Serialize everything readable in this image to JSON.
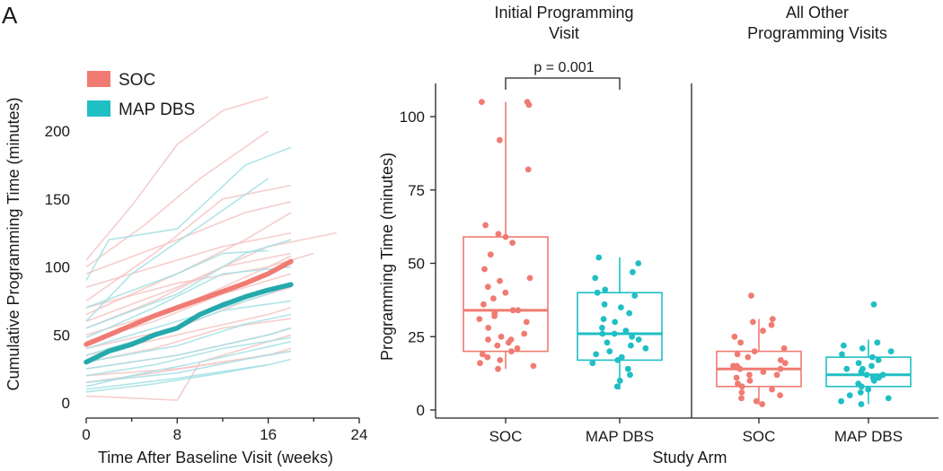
{
  "panel_label": "A",
  "colors": {
    "soc": "#f07b72",
    "map": "#1fbfc4",
    "soc_light": "#f6c4c4",
    "map_light": "#a3e0e4"
  },
  "chart_data": [
    {
      "type": "line",
      "xlabel": "Time After Baseline Visit (weeks)",
      "ylabel": "Cumulative Programming Time (minutes)",
      "xlim": [
        0,
        24
      ],
      "ylim": [
        0,
        230
      ],
      "xticks": [
        0,
        8,
        16,
        24
      ],
      "yticks": [
        0,
        50,
        100,
        150,
        200
      ],
      "legend": {
        "placement": "top-left",
        "entries": [
          "SOC",
          "MAP DBS"
        ]
      },
      "series": [
        {
          "name": "SOC",
          "x": [
            0,
            2,
            4,
            6,
            8,
            10,
            12,
            14,
            16,
            18
          ],
          "values": [
            43,
            50,
            57,
            64,
            70,
            76,
            82,
            88,
            95,
            104
          ]
        },
        {
          "name": "MAP DBS",
          "x": [
            0,
            2,
            4,
            6,
            8,
            10,
            12,
            14,
            16,
            18
          ],
          "values": [
            30,
            38,
            43,
            50,
            55,
            65,
            72,
            78,
            83,
            87
          ]
        }
      ],
      "individual_trajectories": {
        "SOC": [
          [
            [
              0,
              105
            ],
            [
              4,
              145
            ],
            [
              8,
              190
            ],
            [
              12,
              215
            ],
            [
              16,
              225
            ]
          ],
          [
            [
              0,
              100
            ],
            [
              5,
              130
            ],
            [
              10,
              165
            ],
            [
              16,
              200
            ]
          ],
          [
            [
              0,
              75
            ],
            [
              6,
              110
            ],
            [
              12,
              150
            ],
            [
              18,
              160
            ]
          ],
          [
            [
              0,
              65
            ],
            [
              8,
              95
            ],
            [
              14,
              120
            ],
            [
              18,
              140
            ]
          ],
          [
            [
              0,
              60
            ],
            [
              8,
              85
            ],
            [
              16,
              115
            ],
            [
              22,
              125
            ]
          ],
          [
            [
              0,
              55
            ],
            [
              6,
              75
            ],
            [
              12,
              100
            ],
            [
              18,
              110
            ]
          ],
          [
            [
              0,
              50
            ],
            [
              8,
              70
            ],
            [
              16,
              100
            ],
            [
              20,
              110
            ]
          ],
          [
            [
              0,
              45
            ],
            [
              6,
              60
            ],
            [
              12,
              80
            ],
            [
              18,
              95
            ]
          ],
          [
            [
              0,
              40
            ],
            [
              8,
              55
            ],
            [
              14,
              75
            ],
            [
              18,
              85
            ]
          ],
          [
            [
              0,
              35
            ],
            [
              8,
              50
            ],
            [
              16,
              65
            ],
            [
              18,
              70
            ]
          ],
          [
            [
              0,
              30
            ],
            [
              6,
              40
            ],
            [
              12,
              55
            ],
            [
              18,
              62
            ]
          ],
          [
            [
              0,
              25
            ],
            [
              8,
              35
            ],
            [
              16,
              50
            ],
            [
              18,
              55
            ]
          ],
          [
            [
              0,
              20
            ],
            [
              8,
              25
            ],
            [
              16,
              35
            ],
            [
              18,
              40
            ]
          ],
          [
            [
              0,
              15
            ],
            [
              6,
              22
            ],
            [
              12,
              30
            ],
            [
              18,
              38
            ]
          ],
          [
            [
              0,
              5
            ],
            [
              8,
              2
            ],
            [
              10,
              30
            ],
            [
              18,
              50
            ]
          ],
          [
            [
              0,
              95
            ],
            [
              8,
              120
            ],
            [
              14,
              140
            ],
            [
              18,
              148
            ]
          ],
          [
            [
              0,
              85
            ],
            [
              6,
              100
            ],
            [
              12,
              115
            ],
            [
              18,
              125
            ]
          ],
          [
            [
              0,
              70
            ],
            [
              8,
              88
            ],
            [
              16,
              100
            ],
            [
              18,
              108
            ]
          ]
        ],
        "MAP DBS": [
          [
            [
              0,
              90
            ],
            [
              2,
              120
            ],
            [
              8,
              128
            ],
            [
              14,
              175
            ],
            [
              18,
              188
            ]
          ],
          [
            [
              0,
              60
            ],
            [
              4,
              95
            ],
            [
              10,
              130
            ],
            [
              16,
              165
            ]
          ],
          [
            [
              0,
              55
            ],
            [
              8,
              80
            ],
            [
              14,
              110
            ],
            [
              18,
              120
            ]
          ],
          [
            [
              0,
              48
            ],
            [
              6,
              70
            ],
            [
              12,
              95
            ],
            [
              18,
              100
            ]
          ],
          [
            [
              0,
              40
            ],
            [
              8,
              60
            ],
            [
              16,
              80
            ],
            [
              18,
              88
            ]
          ],
          [
            [
              0,
              35
            ],
            [
              6,
              50
            ],
            [
              12,
              68
            ],
            [
              18,
              75
            ]
          ],
          [
            [
              0,
              30
            ],
            [
              8,
              42
            ],
            [
              14,
              58
            ],
            [
              18,
              65
            ]
          ],
          [
            [
              0,
              25
            ],
            [
              8,
              35
            ],
            [
              16,
              50
            ],
            [
              18,
              55
            ]
          ],
          [
            [
              0,
              20
            ],
            [
              6,
              28
            ],
            [
              12,
              40
            ],
            [
              18,
              48
            ]
          ],
          [
            [
              0,
              15
            ],
            [
              8,
              22
            ],
            [
              14,
              32
            ],
            [
              18,
              38
            ]
          ],
          [
            [
              0,
              10
            ],
            [
              8,
              18
            ],
            [
              16,
              28
            ],
            [
              18,
              32
            ]
          ],
          [
            [
              0,
              8
            ],
            [
              6,
              14
            ],
            [
              12,
              22
            ],
            [
              16,
              28
            ]
          ],
          [
            [
              0,
              12
            ],
            [
              4,
              20
            ],
            [
              10,
              30
            ],
            [
              18,
              45
            ]
          ],
          [
            [
              0,
              70
            ],
            [
              8,
              95
            ],
            [
              12,
              110
            ],
            [
              16,
              112
            ]
          ]
        ]
      }
    },
    {
      "type": "box",
      "xlabel": "Study Arm",
      "ylabel": "Programming Time (minutes)",
      "ylim": [
        0,
        110
      ],
      "yticks": [
        0,
        25,
        50,
        75,
        100
      ],
      "facets": [
        "Initial Programming Visit",
        "All Other Programming Visits"
      ],
      "facet_titles": [
        [
          "Initial Programming",
          "Visit"
        ],
        [
          "All Other",
          "Programming Visits"
        ]
      ],
      "annotation": {
        "text": "p = 0.001",
        "facet": 0,
        "between": [
          "SOC",
          "MAP DBS"
        ]
      },
      "groups": [
        {
          "facet": 0,
          "category": "SOC",
          "series": "SOC",
          "min": 14,
          "q1": 20,
          "median": 34,
          "q3": 59,
          "max": 105,
          "points": [
            105,
            104,
            105,
            92,
            82,
            63,
            60,
            59,
            57,
            53,
            48,
            45,
            44,
            42,
            40,
            38,
            36,
            34,
            33,
            32,
            31,
            30,
            28,
            26,
            25,
            24,
            23,
            22,
            21,
            20,
            19,
            18,
            17,
            16,
            15,
            14,
            34,
            24
          ]
        },
        {
          "facet": 0,
          "category": "MAP DBS",
          "series": "MAP DBS",
          "min": 7,
          "q1": 17,
          "median": 26,
          "q3": 40,
          "max": 52,
          "points": [
            52,
            50,
            47,
            45,
            41,
            40,
            39,
            36,
            35,
            33,
            31,
            30,
            28,
            27,
            26,
            25,
            24,
            23,
            22,
            20,
            19,
            18,
            17,
            16,
            14,
            12,
            10,
            8,
            26,
            21
          ]
        },
        {
          "facet": 1,
          "category": "SOC",
          "series": "SOC",
          "min": 2,
          "q1": 8,
          "median": 14,
          "q3": 20,
          "max": 31,
          "points": [
            39,
            31,
            30,
            29,
            27,
            25,
            23,
            21,
            20,
            19,
            18,
            17,
            16,
            15,
            14,
            14,
            13,
            12,
            11,
            10,
            9,
            8,
            7,
            6,
            5,
            4,
            3,
            2,
            15,
            12
          ]
        },
        {
          "facet": 1,
          "category": "MAP DBS",
          "series": "MAP DBS",
          "min": 2,
          "q1": 8,
          "median": 12,
          "q3": 18,
          "max": 24,
          "points": [
            36,
            23,
            22,
            21,
            20,
            19,
            18,
            17,
            16,
            15,
            14,
            13,
            12,
            12,
            11,
            10,
            9,
            8,
            7,
            6,
            5,
            4,
            3,
            2,
            14,
            11
          ]
        }
      ]
    }
  ]
}
